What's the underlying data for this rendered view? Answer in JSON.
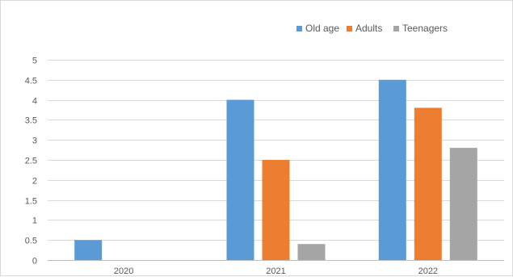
{
  "chart_data": {
    "type": "bar",
    "title": "",
    "xlabel": "",
    "ylabel": "",
    "categories": [
      "2020",
      "2021",
      "2022"
    ],
    "series": [
      {
        "name": "Old age",
        "values": [
          0.5,
          4,
          4.5
        ],
        "color": "#5b9bd5"
      },
      {
        "name": "Adults",
        "values": [
          0,
          2.5,
          3.8
        ],
        "color": "#ed7d31"
      },
      {
        "name": "Teenagers",
        "values": [
          0,
          0.4,
          2.8
        ],
        "color": "#a5a5a5"
      }
    ],
    "ylim": [
      0,
      5
    ],
    "yticks": [
      0,
      0.5,
      1,
      1.5,
      2,
      2.5,
      3,
      3.5,
      4,
      4.5,
      5
    ],
    "ytick_labels": [
      "0",
      "0.5",
      "1",
      "1.5",
      "2",
      "2.5",
      "3",
      "3.5",
      "4",
      "4.5",
      "5"
    ],
    "grid": true,
    "legend_position": "top-right",
    "gridline_color": "#d9d9d9",
    "axis_color": "#bfbfbf"
  }
}
